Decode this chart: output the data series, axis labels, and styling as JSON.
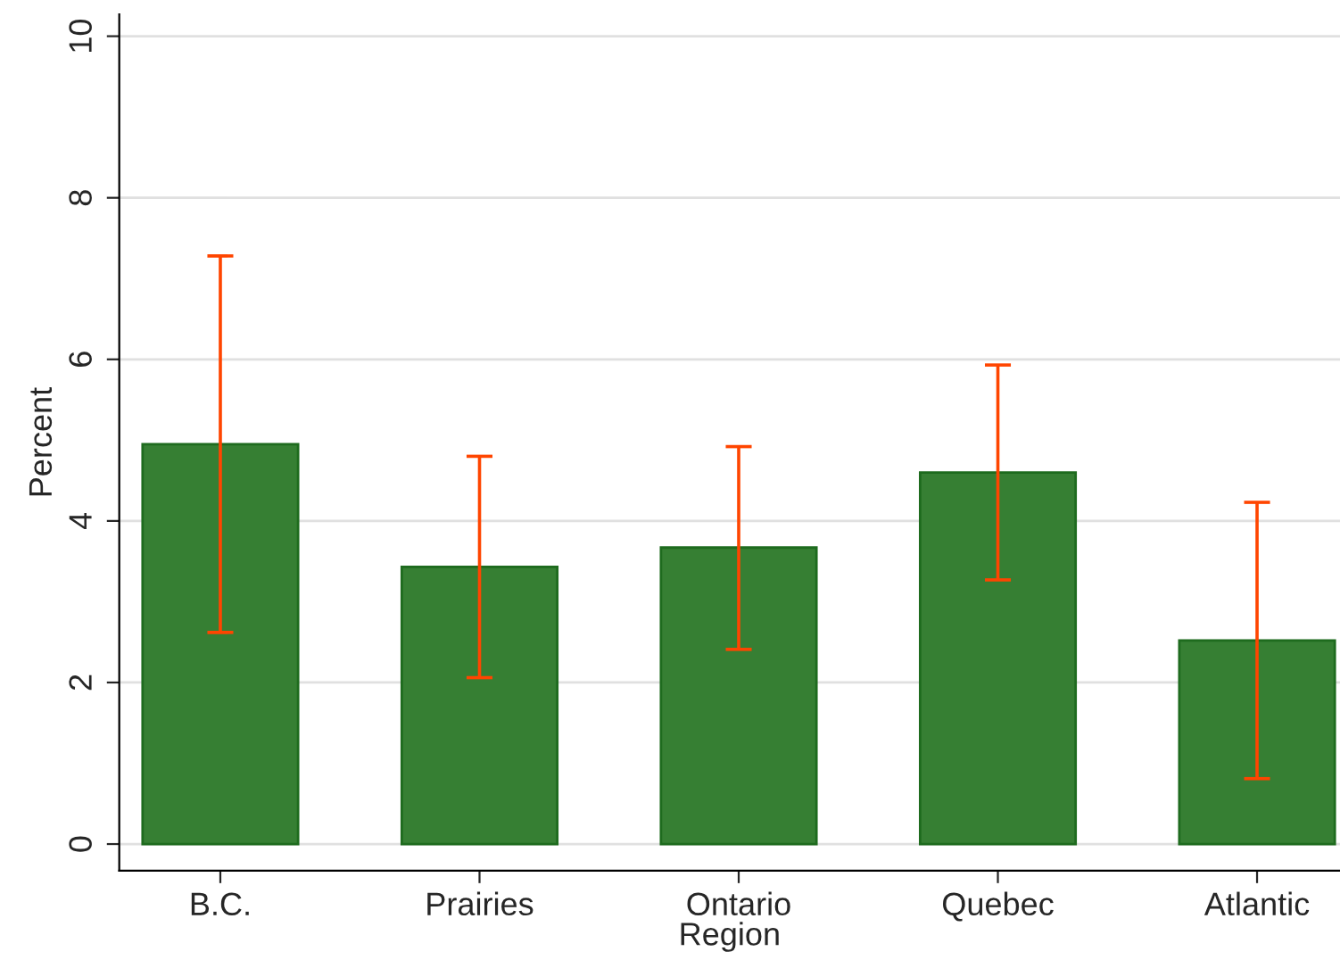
{
  "chart_data": {
    "type": "bar",
    "xlabel": "Region",
    "ylabel": "Percent",
    "categories": [
      "B.C.",
      "Prairies",
      "Ontario",
      "Quebec",
      "Atlantic"
    ],
    "values": [
      4.95,
      3.43,
      3.67,
      4.6,
      2.52
    ],
    "errors": [
      [
        2.62,
        7.28
      ],
      [
        2.06,
        4.8
      ],
      [
        2.41,
        4.92
      ],
      [
        3.27,
        5.93
      ],
      [
        0.81,
        4.23
      ]
    ],
    "color": "#367f33",
    "ylim": [
      -0.33,
      10.27
    ],
    "yticks": [
      0,
      2,
      4,
      6,
      8,
      10
    ],
    "grid": "y"
  }
}
